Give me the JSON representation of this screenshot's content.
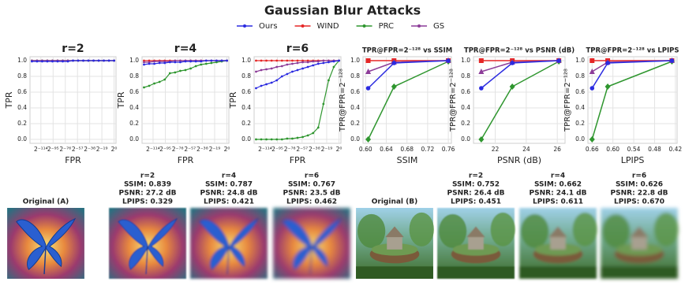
{
  "title": "Gaussian Blur Attacks",
  "legend": {
    "items": [
      {
        "name": "Ours",
        "color": "#2b2be0"
      },
      {
        "name": "WIND",
        "color": "#e52626"
      },
      {
        "name": "PRC",
        "color": "#2f962f"
      },
      {
        "name": "GS",
        "color": "#8c3c98"
      }
    ]
  },
  "chart_data": [
    {
      "type": "line",
      "title": "r=2",
      "xlabel": "FPR",
      "ylabel": "TPR",
      "grid": true,
      "x": [
        -128,
        -120,
        -112,
        -104,
        -96,
        -88,
        -80,
        -72,
        -64,
        -56,
        -48,
        -40,
        -32,
        -24,
        -16,
        -8,
        0
      ],
      "xlim": [
        -131,
        3
      ],
      "xticks": [
        {
          "value": -114,
          "label": "2⁻¹¹⁴"
        },
        {
          "value": -95,
          "label": "2⁻⁹⁵"
        },
        {
          "value": -76,
          "label": "2⁻⁷⁶"
        },
        {
          "value": -57,
          "label": "2⁻⁵⁷"
        },
        {
          "value": -38,
          "label": "2⁻³⁸"
        },
        {
          "value": -19,
          "label": "2⁻¹⁹"
        },
        {
          "value": 0,
          "label": "2⁰"
        }
      ],
      "ylim": [
        -0.05,
        1.05
      ],
      "yticks": [
        {
          "value": 0,
          "label": "0.0"
        },
        0.2,
        0.4,
        0.6,
        0.8,
        {
          "value": 1,
          "label": "1.0"
        }
      ],
      "series": [
        {
          "color": "#e52626",
          "marker": "dot",
          "values": [
            1,
            1,
            1,
            1,
            1,
            1,
            1,
            1,
            1,
            1,
            1,
            1,
            1,
            1,
            1,
            1,
            1
          ]
        },
        {
          "color": "#2f962f",
          "marker": "dot",
          "values": [
            1,
            1,
            1,
            1,
            1,
            1,
            1,
            1,
            1,
            1,
            1,
            1,
            1,
            1,
            1,
            1,
            1
          ]
        },
        {
          "color": "#8c3c98",
          "marker": "dot",
          "values": [
            1,
            1,
            1,
            1,
            1,
            1,
            1,
            1,
            1,
            1,
            1,
            1,
            1,
            1,
            1,
            1,
            1
          ]
        },
        {
          "color": "#2b2be0",
          "marker": "dot",
          "values": [
            0.99,
            0.99,
            0.99,
            0.99,
            0.99,
            0.99,
            0.99,
            0.99,
            1,
            1,
            1,
            1,
            1,
            1,
            1,
            1,
            1
          ]
        }
      ]
    },
    {
      "type": "line",
      "title": "r=4",
      "xlabel": "FPR",
      "ylabel": "TPR",
      "grid": true,
      "x": [
        -128,
        -120,
        -112,
        -104,
        -96,
        -88,
        -80,
        -72,
        -64,
        -56,
        -48,
        -40,
        -32,
        -24,
        -16,
        -8,
        0
      ],
      "xlim": [
        -131,
        3
      ],
      "xticks": [
        {
          "value": -114,
          "label": "2⁻¹¹⁴"
        },
        {
          "value": -95,
          "label": "2⁻⁹⁵"
        },
        {
          "value": -76,
          "label": "2⁻⁷⁶"
        },
        {
          "value": -57,
          "label": "2⁻⁵⁷"
        },
        {
          "value": -38,
          "label": "2⁻³⁸"
        },
        {
          "value": -19,
          "label": "2⁻¹⁹"
        },
        {
          "value": 0,
          "label": "2⁰"
        }
      ],
      "ylim": [
        -0.05,
        1.05
      ],
      "yticks": [
        {
          "value": 0,
          "label": "0.0"
        },
        0.2,
        0.4,
        0.6,
        0.8,
        {
          "value": 1,
          "label": "1.0"
        }
      ],
      "series": [
        {
          "color": "#e52626",
          "marker": "dot",
          "values": [
            1,
            1,
            1,
            1,
            1,
            1,
            1,
            1,
            1,
            1,
            1,
            1,
            1,
            1,
            1,
            1,
            1
          ]
        },
        {
          "color": "#2f962f",
          "marker": "dot",
          "values": [
            0.66,
            0.68,
            0.71,
            0.73,
            0.76,
            0.84,
            0.85,
            0.87,
            0.88,
            0.9,
            0.93,
            0.95,
            0.96,
            0.97,
            0.98,
            0.99,
            1
          ]
        },
        {
          "color": "#8c3c98",
          "marker": "dot",
          "values": [
            0.98,
            0.98,
            0.99,
            0.99,
            0.99,
            0.99,
            1,
            1,
            1,
            1,
            1,
            1,
            1,
            1,
            1,
            1,
            1
          ]
        },
        {
          "color": "#2b2be0",
          "marker": "dot",
          "values": [
            0.95,
            0.96,
            0.96,
            0.97,
            0.97,
            0.98,
            0.98,
            0.98,
            0.99,
            0.99,
            0.99,
            0.99,
            1,
            1,
            1,
            1,
            1
          ]
        }
      ]
    },
    {
      "type": "line",
      "title": "r=6",
      "xlabel": "FPR",
      "ylabel": "TPR",
      "grid": true,
      "x": [
        -128,
        -120,
        -112,
        -104,
        -96,
        -88,
        -80,
        -72,
        -64,
        -56,
        -48,
        -40,
        -32,
        -24,
        -16,
        -8,
        0
      ],
      "xlim": [
        -131,
        3
      ],
      "xticks": [
        {
          "value": -114,
          "label": "2⁻¹¹⁴"
        },
        {
          "value": -95,
          "label": "2⁻⁹⁵"
        },
        {
          "value": -76,
          "label": "2⁻⁷⁶"
        },
        {
          "value": -57,
          "label": "2⁻⁵⁷"
        },
        {
          "value": -38,
          "label": "2⁻³⁸"
        },
        {
          "value": -19,
          "label": "2⁻¹⁹"
        },
        {
          "value": 0,
          "label": "2⁰"
        }
      ],
      "ylim": [
        -0.05,
        1.05
      ],
      "yticks": [
        {
          "value": 0,
          "label": "0.0"
        },
        0.2,
        0.4,
        0.6,
        0.8,
        {
          "value": 1,
          "label": "1.0"
        }
      ],
      "series": [
        {
          "color": "#e52626",
          "marker": "dot",
          "values": [
            1,
            1,
            1,
            1,
            1,
            1,
            1,
            1,
            1,
            1,
            1,
            1,
            1,
            1,
            1,
            1,
            1
          ]
        },
        {
          "color": "#2f962f",
          "marker": "dot",
          "values": [
            0,
            0,
            0,
            0,
            0,
            0,
            0.01,
            0.01,
            0.02,
            0.03,
            0.05,
            0.08,
            0.15,
            0.45,
            0.75,
            0.92,
            1
          ]
        },
        {
          "color": "#8c3c98",
          "marker": "dot",
          "values": [
            0.86,
            0.88,
            0.89,
            0.9,
            0.92,
            0.93,
            0.95,
            0.96,
            0.97,
            0.98,
            0.98,
            0.99,
            0.99,
            1,
            1,
            1,
            1
          ]
        },
        {
          "color": "#2b2be0",
          "marker": "dot",
          "values": [
            0.65,
            0.68,
            0.7,
            0.72,
            0.75,
            0.8,
            0.83,
            0.86,
            0.88,
            0.9,
            0.92,
            0.94,
            0.96,
            0.97,
            0.98,
            0.99,
            1
          ]
        }
      ]
    },
    {
      "type": "line",
      "title": "TPR@FPR=2⁻¹²⁸ vs SSIM",
      "xlabel": "SSIM",
      "ylabel": "TPR@FPR=2⁻¹²⁸",
      "grid": true,
      "x": [
        0.605,
        0.655,
        0.76
      ],
      "xlim": [
        0.595,
        0.766
      ],
      "xticks": [
        {
          "value": 0.6,
          "label": "0.60"
        },
        0.64,
        0.68,
        0.72,
        0.76
      ],
      "ylim": [
        -0.05,
        1.05
      ],
      "yticks": [
        {
          "value": 0,
          "label": "0.0"
        },
        0.2,
        0.4,
        0.6,
        0.8,
        {
          "value": 1,
          "label": "1.0"
        }
      ],
      "series": [
        {
          "color": "#e52626",
          "marker": "square",
          "values": [
            1,
            1,
            1
          ]
        },
        {
          "color": "#2f962f",
          "marker": "diamond",
          "values": [
            0,
            0.67,
            0.99
          ]
        },
        {
          "color": "#8c3c98",
          "marker": "triangle",
          "values": [
            0.86,
            0.98,
            1
          ]
        },
        {
          "color": "#2b2be0",
          "marker": "circle",
          "values": [
            0.65,
            0.97,
            1
          ]
        }
      ]
    },
    {
      "type": "line",
      "title": "TPR@FPR=2⁻¹²⁸ vs PSNR (dB)",
      "xlabel": "PSNR (dB)",
      "ylabel": "TPR@FPR=2⁻¹²⁸",
      "grid": true,
      "x": [
        21.1,
        23.1,
        26.1
      ],
      "xlim": [
        20.6,
        26.5
      ],
      "xticks": [
        22,
        24,
        26
      ],
      "ylim": [
        -0.05,
        1.05
      ],
      "yticks": [
        {
          "value": 0,
          "label": "0.0"
        },
        0.2,
        0.4,
        0.6,
        0.8,
        {
          "value": 1,
          "label": "1.0"
        }
      ],
      "series": [
        {
          "color": "#e52626",
          "marker": "square",
          "values": [
            1,
            1,
            1
          ]
        },
        {
          "color": "#2f962f",
          "marker": "diamond",
          "values": [
            0,
            0.67,
            0.99
          ]
        },
        {
          "color": "#8c3c98",
          "marker": "triangle",
          "values": [
            0.86,
            0.98,
            1
          ]
        },
        {
          "color": "#2b2be0",
          "marker": "circle",
          "values": [
            0.65,
            0.97,
            1
          ]
        }
      ]
    },
    {
      "type": "line",
      "title": "TPR@FPR=2⁻¹²⁸ vs LPIPS",
      "xlabel": "LPIPS",
      "ylabel": "TPR@FPR=2⁻¹²⁸",
      "grid": true,
      "x": [
        0.66,
        0.615,
        0.43
      ],
      "xlim": [
        0.672,
        0.415
      ],
      "xticks": [
        0.66,
        {
          "value": 0.6,
          "label": "0.60"
        },
        0.54,
        {
          "value": 0.48,
          "label": "0.48"
        },
        0.42
      ],
      "ylim": [
        -0.05,
        1.05
      ],
      "yticks": [
        {
          "value": 0,
          "label": "0.0"
        },
        0.2,
        0.4,
        0.6,
        0.8,
        {
          "value": 1,
          "label": "1.0"
        }
      ],
      "series": [
        {
          "color": "#e52626",
          "marker": "square",
          "values": [
            1,
            1,
            1
          ]
        },
        {
          "color": "#2f962f",
          "marker": "diamond",
          "values": [
            0,
            0.67,
            0.99
          ]
        },
        {
          "color": "#8c3c98",
          "marker": "triangle",
          "values": [
            0.86,
            0.98,
            1
          ]
        },
        {
          "color": "#2b2be0",
          "marker": "circle",
          "values": [
            0.65,
            0.97,
            1
          ]
        }
      ]
    }
  ],
  "images": [
    {
      "caption": [
        "Original (A)"
      ]
    },
    {
      "caption": [
        "r=2",
        "SSIM: 0.839",
        "PSNR: 27.2 dB",
        "LPIPS: 0.329"
      ]
    },
    {
      "caption": [
        "r=4",
        "SSIM: 0.787",
        "PSNR: 24.8 dB",
        "LPIPS: 0.421"
      ]
    },
    {
      "caption": [
        "r=6",
        "SSIM: 0.767",
        "PSNR: 23.5 dB",
        "LPIPS: 0.462"
      ]
    },
    {
      "caption": [
        "Original (B)"
      ]
    },
    {
      "caption": [
        "r=2",
        "SSIM: 0.752",
        "PSNR: 26.4 dB",
        "LPIPS: 0.451"
      ]
    },
    {
      "caption": [
        "r=4",
        "SSIM: 0.662",
        "PSNR: 24.1 dB",
        "LPIPS: 0.611"
      ]
    },
    {
      "caption": [
        "r=6",
        "SSIM: 0.626",
        "PSNR: 22.8 dB",
        "LPIPS: 0.670"
      ]
    }
  ]
}
